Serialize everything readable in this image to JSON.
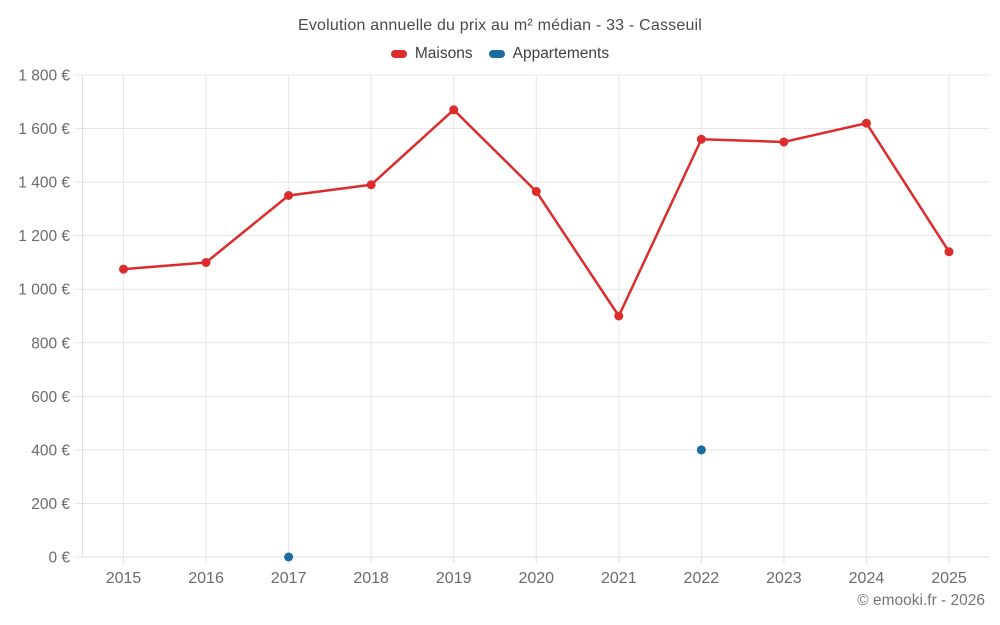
{
  "page": {
    "title": "Evolution annuelle du prix au m² médian - 33 - Casseuil",
    "footer": "© emooki.fr - 2026"
  },
  "colors": {
    "grid": "#e7e7e7",
    "axis": "#dedede",
    "tick_label": "#6b6b6b",
    "title_text": "#4a4a4a",
    "footer_text": "#757575"
  },
  "chart_data": {
    "type": "line",
    "title": "Evolution annuelle du prix au m² médian - 33 - Casseuil",
    "categories": [
      "2015",
      "2016",
      "2017",
      "2018",
      "2019",
      "2020",
      "2021",
      "2022",
      "2023",
      "2024",
      "2025"
    ],
    "series": [
      {
        "name": "Maisons",
        "color": "#dd2c2c",
        "values": [
          1075,
          1100,
          1350,
          1390,
          1670,
          1365,
          900,
          1560,
          1550,
          1620,
          1140
        ]
      },
      {
        "name": "Appartements",
        "color": "#1a6d9e",
        "values": [
          null,
          null,
          0,
          null,
          null,
          null,
          null,
          400,
          null,
          null,
          null
        ]
      }
    ],
    "ylim": [
      0,
      1800
    ],
    "ytick_step": 200,
    "ytick_suffix": " €",
    "grid": true,
    "legend_position": "top",
    "marker_radius": 4.5,
    "line_width": 2.5
  }
}
